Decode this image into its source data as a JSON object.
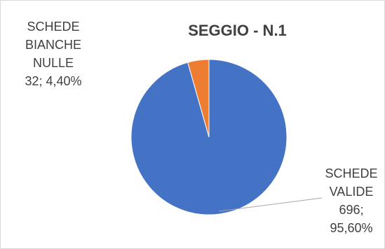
{
  "chart_data": {
    "type": "pie",
    "title": "SEGGIO - N.1",
    "slices": [
      {
        "name_lines": [
          "SCHEDE",
          "VALIDE"
        ],
        "value": 696,
        "percent_label": "95,60%",
        "color": "#4472c4"
      },
      {
        "name_lines": [
          "SCHEDE",
          "BIANCHE",
          "NULLE"
        ],
        "value": 32,
        "percent_label": "4,40%",
        "color": "#ed7d31"
      }
    ],
    "legend": "none",
    "data_labels": [
      {
        "lines": [
          "SCHEDE",
          "VALIDE",
          "696;",
          "95,60%"
        ]
      },
      {
        "lines": [
          "SCHEDE",
          "BIANCHE",
          "NULLE",
          "32; 4,40%"
        ]
      }
    ]
  }
}
